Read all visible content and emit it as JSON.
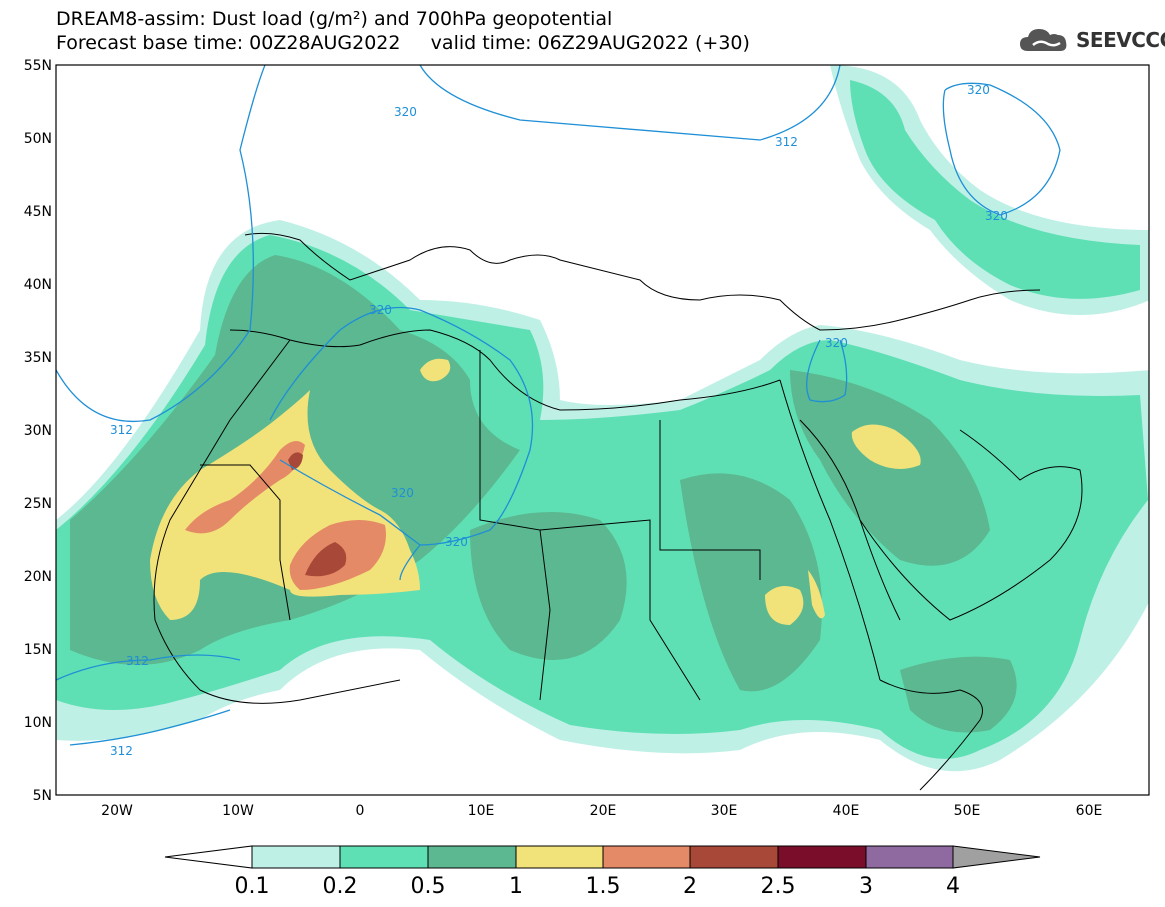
{
  "title": {
    "line1": "DREAM8-assim: Dust load (g/m²) and 700hPa geopotential",
    "line2": "Forecast base time: 00Z28AUG2022     valid time: 06Z29AUG2022 (+30)"
  },
  "logo": {
    "text": "SEEVCCC",
    "icon": "cloud-logo-icon"
  },
  "axes": {
    "lat_labels": [
      "55N",
      "50N",
      "45N",
      "40N",
      "35N",
      "30N",
      "25N",
      "20N",
      "15N",
      "10N",
      "5N"
    ],
    "lon_labels": [
      "20W",
      "10W",
      "0",
      "10E",
      "20E",
      "30E",
      "40E",
      "50E",
      "60E"
    ]
  },
  "contour_labels": [
    "312",
    "320",
    "312",
    "320",
    "320",
    "320",
    "320",
    "312",
    "312",
    "320",
    "320"
  ],
  "colorbar": {
    "ticks": [
      "0.1",
      "0.2",
      "0.5",
      "1",
      "1.5",
      "2",
      "2.5",
      "3",
      "4"
    ],
    "colors": [
      "#ffffff",
      "#bff0e6",
      "#5fe0b4",
      "#5bb890",
      "#f2e27a",
      "#e58a66",
      "#a84838",
      "#7a0e2a",
      "#8e6aa0",
      "#a0a0a0"
    ]
  },
  "colors": {
    "geopotential_contour": "#1f8fd6",
    "dust_low": "#bff0e6",
    "dust_02": "#5fe0b4",
    "dust_05": "#5bb890",
    "dust_1": "#f2e27a",
    "dust_15": "#e58a66",
    "dust_2": "#a84838"
  }
}
